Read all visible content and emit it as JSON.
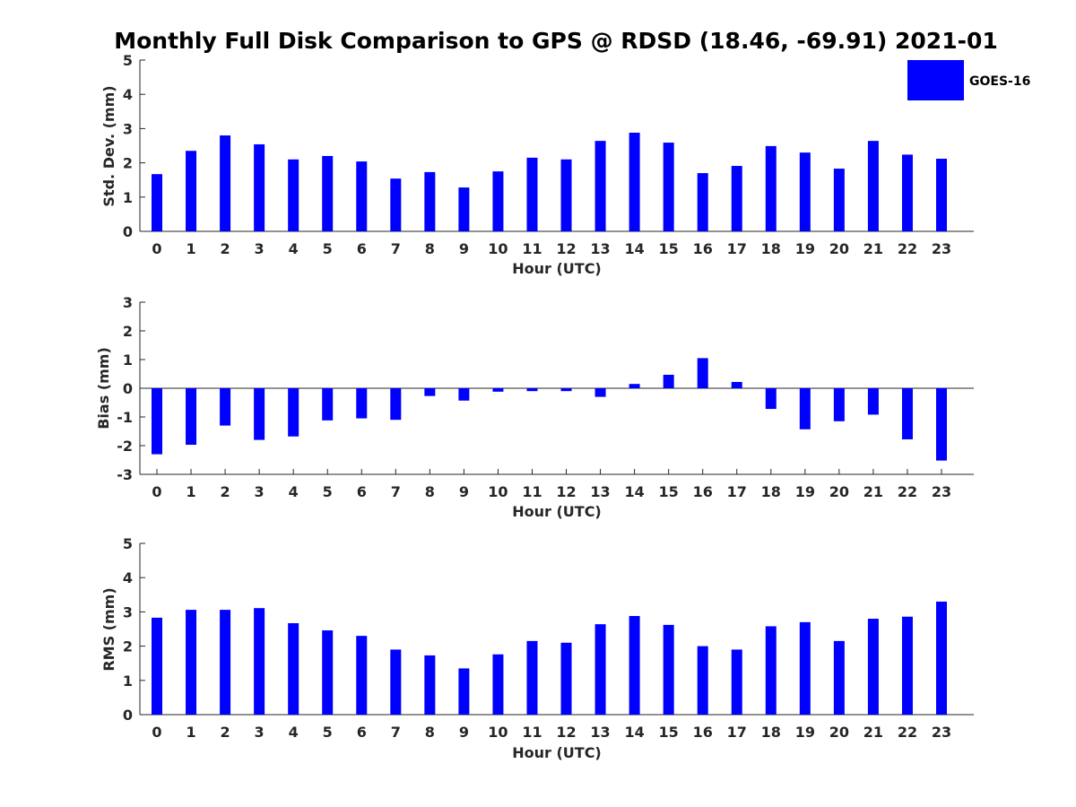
{
  "figure": {
    "title": "Monthly Full Disk Comparison to GPS @ RDSD (18.46, -69.91) 2021-01",
    "legend": {
      "label": "GOES-16",
      "color": "#0000ff",
      "placement": "top-right"
    }
  },
  "chart_data": [
    {
      "type": "bar",
      "xlabel": "Hour (UTC)",
      "ylabel": "Std. Dev. (mm)",
      "ylim": [
        0,
        5
      ],
      "yticks": [
        "0",
        "1",
        "2",
        "3",
        "4",
        "5"
      ],
      "categories": [
        "0",
        "1",
        "2",
        "3",
        "4",
        "5",
        "6",
        "7",
        "8",
        "9",
        "10",
        "11",
        "12",
        "13",
        "14",
        "15",
        "16",
        "17",
        "18",
        "19",
        "20",
        "21",
        "22",
        "23"
      ],
      "series": [
        {
          "name": "GOES-16",
          "color": "#0000ff",
          "values": [
            1.67,
            2.35,
            2.8,
            2.54,
            2.1,
            2.2,
            2.04,
            1.54,
            1.73,
            1.28,
            1.75,
            2.15,
            2.1,
            2.64,
            2.88,
            2.59,
            1.7,
            1.91,
            2.49,
            2.3,
            1.83,
            2.64,
            2.24,
            2.12
          ]
        }
      ]
    },
    {
      "type": "bar",
      "xlabel": "Hour (UTC)",
      "ylabel": "Bias (mm)",
      "ylim": [
        -3,
        3
      ],
      "yticks": [
        "-3",
        "-2",
        "-1",
        "0",
        "1",
        "2",
        "3"
      ],
      "categories": [
        "0",
        "1",
        "2",
        "3",
        "4",
        "5",
        "6",
        "7",
        "8",
        "9",
        "10",
        "11",
        "12",
        "13",
        "14",
        "15",
        "16",
        "17",
        "18",
        "19",
        "20",
        "21",
        "22",
        "23"
      ],
      "series": [
        {
          "name": "GOES-16",
          "color": "#0000ff",
          "values": [
            -2.3,
            -1.97,
            -1.3,
            -1.8,
            -1.68,
            -1.12,
            -1.05,
            -1.1,
            -0.27,
            -0.43,
            -0.12,
            -0.1,
            -0.1,
            -0.3,
            0.15,
            0.47,
            1.05,
            0.22,
            -0.72,
            -1.43,
            -1.15,
            -0.92,
            -1.78,
            -2.52
          ]
        }
      ]
    },
    {
      "type": "bar",
      "xlabel": "Hour (UTC)",
      "ylabel": "RMS (mm)",
      "ylim": [
        0,
        5
      ],
      "yticks": [
        "0",
        "1",
        "2",
        "3",
        "4",
        "5"
      ],
      "categories": [
        "0",
        "1",
        "2",
        "3",
        "4",
        "5",
        "6",
        "7",
        "8",
        "9",
        "10",
        "11",
        "12",
        "13",
        "14",
        "15",
        "16",
        "17",
        "18",
        "19",
        "20",
        "21",
        "22",
        "23"
      ],
      "series": [
        {
          "name": "GOES-16",
          "color": "#0000ff",
          "values": [
            2.83,
            3.06,
            3.06,
            3.11,
            2.67,
            2.46,
            2.3,
            1.9,
            1.73,
            1.35,
            1.76,
            2.15,
            2.1,
            2.64,
            2.88,
            2.62,
            2.0,
            1.9,
            2.58,
            2.7,
            2.15,
            2.8,
            2.86,
            3.3
          ]
        }
      ]
    }
  ]
}
